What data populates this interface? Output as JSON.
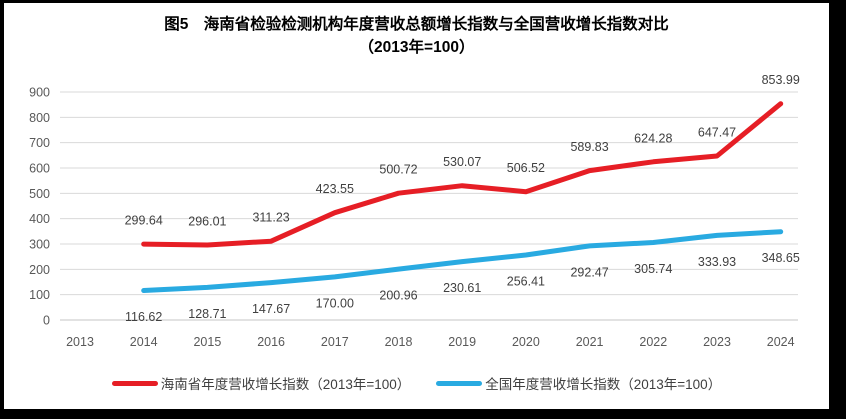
{
  "frame": {
    "background": "#000000",
    "panel_background": "#ffffff"
  },
  "title": {
    "line1": "图5　海南省检验检测机构年度营收总额增长指数与全国营收增长指数对比",
    "line2": "（2013年=100）"
  },
  "chart_data": {
    "type": "line",
    "title": "图5 海南省检验检测机构年度营收总额增长指数与全国营收增长指数对比（2013年=100）",
    "categories": [
      "2013",
      "2014",
      "2015",
      "2016",
      "2017",
      "2018",
      "2019",
      "2020",
      "2021",
      "2022",
      "2023",
      "2024"
    ],
    "series": [
      {
        "name": "海南省年度营收增长指数（2013年=100）",
        "color": "#e61e25",
        "label_position": "above",
        "values": [
          null,
          299.64,
          296.01,
          311.23,
          423.55,
          500.72,
          530.07,
          506.52,
          589.83,
          624.28,
          647.47,
          853.99
        ]
      },
      {
        "name": "全国年度营收增长指数（2013年=100）",
        "color": "#29aae1",
        "label_position": "below",
        "values": [
          null,
          116.62,
          128.71,
          147.67,
          170.0,
          200.96,
          230.61,
          256.41,
          292.47,
          305.74,
          333.93,
          348.65
        ]
      }
    ],
    "xlabel": "",
    "ylabel": "",
    "ylim": [
      0,
      900
    ],
    "yticks": [
      0,
      100,
      200,
      300,
      400,
      500,
      600,
      700,
      800,
      900
    ],
    "grid": true,
    "legend_position": "bottom",
    "grid_color": "#d9d9d9",
    "axis_text_color": "#595959",
    "data_label_color": "#404040",
    "data_label_decimals": 2
  }
}
